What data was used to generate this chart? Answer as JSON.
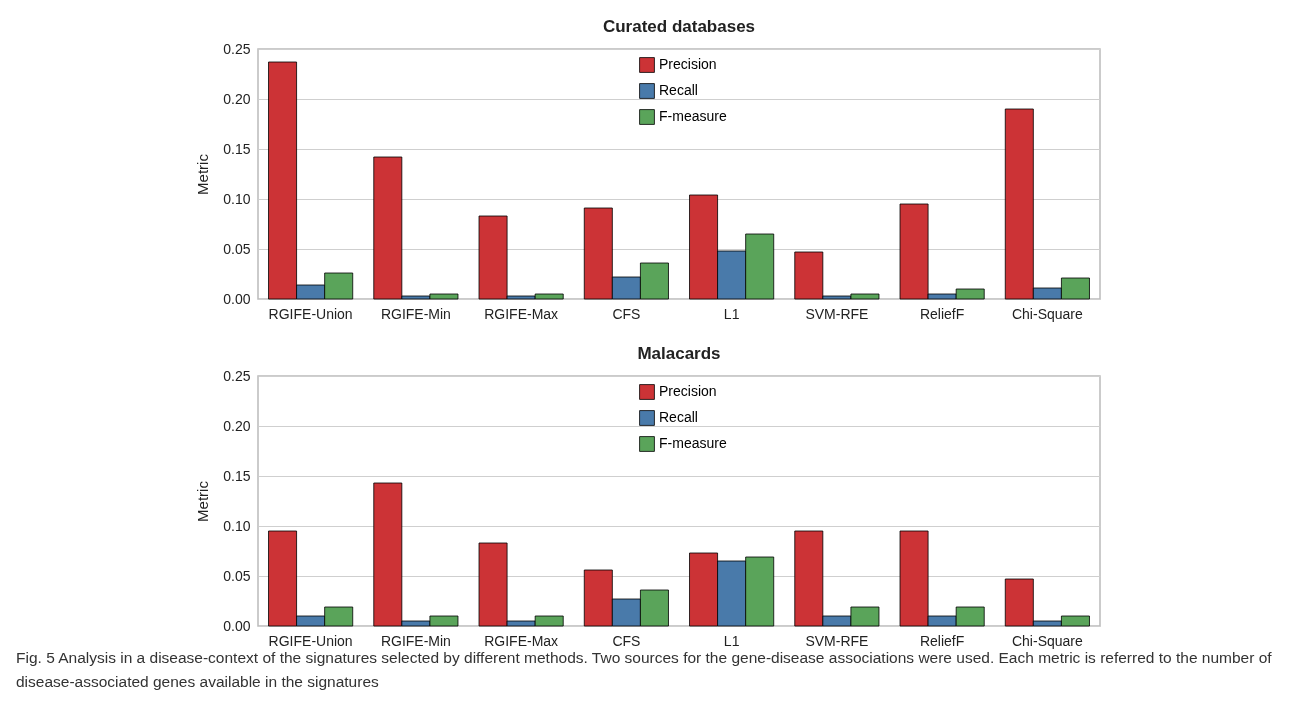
{
  "chart_data": [
    {
      "type": "bar",
      "title": "Curated databases",
      "ylabel": "Metric",
      "categories": [
        "RGIFE-Union",
        "RGIFE-Min",
        "RGIFE-Max",
        "CFS",
        "L1",
        "SVM-RFE",
        "ReliefF",
        "Chi-Square"
      ],
      "series": [
        {
          "name": "Precision",
          "color": "#cc3336",
          "values": [
            0.237,
            0.142,
            0.083,
            0.091,
            0.104,
            0.047,
            0.095,
            0.19
          ]
        },
        {
          "name": "Recall",
          "color": "#497aaa",
          "values": [
            0.014,
            0.003,
            0.003,
            0.022,
            0.048,
            0.003,
            0.005,
            0.011
          ]
        },
        {
          "name": "F-measure",
          "color": "#5aa45a",
          "values": [
            0.026,
            0.005,
            0.005,
            0.036,
            0.065,
            0.005,
            0.01,
            0.021
          ]
        }
      ],
      "ylim": [
        0,
        0.25
      ],
      "yticks": [
        {
          "value": 0,
          "label": "0.00"
        },
        {
          "value": 0.05,
          "label": "0.05"
        },
        {
          "value": 0.1,
          "label": "0.10"
        },
        {
          "value": 0.15,
          "label": "0.15"
        },
        {
          "value": 0.2,
          "label": "0.20"
        },
        {
          "value": 0.25,
          "label": "0.25"
        }
      ],
      "grid": "y",
      "legend": "top"
    },
    {
      "type": "bar",
      "title": "Malacards",
      "ylabel": "Metric",
      "categories": [
        "RGIFE-Union",
        "RGIFE-Min",
        "RGIFE-Max",
        "CFS",
        "L1",
        "SVM-RFE",
        "ReliefF",
        "Chi-Square"
      ],
      "series": [
        {
          "name": "Precision",
          "color": "#cc3336",
          "values": [
            0.095,
            0.143,
            0.083,
            0.056,
            0.073,
            0.095,
            0.095,
            0.047
          ]
        },
        {
          "name": "Recall",
          "color": "#497aaa",
          "values": [
            0.01,
            0.005,
            0.005,
            0.027,
            0.065,
            0.01,
            0.01,
            0.005
          ]
        },
        {
          "name": "F-measure",
          "color": "#5aa45a",
          "values": [
            0.019,
            0.01,
            0.01,
            0.036,
            0.069,
            0.019,
            0.019,
            0.01
          ]
        }
      ],
      "ylim": [
        0,
        0.25
      ],
      "yticks": [
        {
          "value": 0,
          "label": "0.00"
        },
        {
          "value": 0.05,
          "label": "0.05"
        },
        {
          "value": 0.1,
          "label": "0.10"
        },
        {
          "value": 0.15,
          "label": "0.15"
        },
        {
          "value": 0.2,
          "label": "0.20"
        },
        {
          "value": 0.25,
          "label": "0.25"
        }
      ],
      "grid": "y",
      "legend": "top",
      "annotations": [
        "Fig. 5 Analysis in a disease-context of the signatures selected by different methods. Two sources for the gene-disease associations were used. Each metric is referred to the number of disease-associated genes available in the signatures"
      ]
    }
  ]
}
